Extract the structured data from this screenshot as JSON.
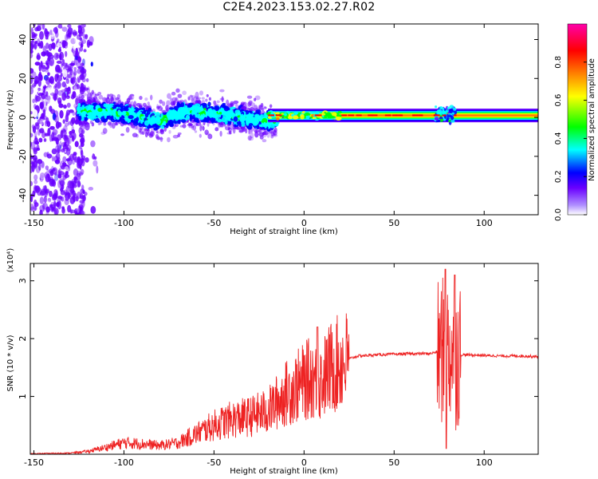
{
  "page": {
    "title": "C2E4.2023.153.02.27.R02"
  },
  "chart_data": [
    {
      "type": "heatmap",
      "xlabel": "Height of straight line (km)",
      "ylabel": "Frequency (Hz)",
      "xlim": [
        -152,
        130
      ],
      "ylim": [
        -50,
        48
      ],
      "xticks": [
        -150,
        -100,
        -50,
        0,
        50,
        100
      ],
      "yticks": [
        -40,
        -20,
        0,
        20,
        40
      ],
      "colorbar": {
        "label": "Normalized spectral amplitude",
        "range": [
          0,
          1
        ],
        "ticks": [
          "0.0",
          "0.2",
          "0.4",
          "0.6",
          "0.8"
        ]
      },
      "colorscale": [
        "#ffffff",
        "#6a00ff",
        "#0000ff",
        "#00ffff",
        "#00ff00",
        "#ffff00",
        "#ff8000",
        "#ff0000",
        "#ff00aa"
      ],
      "ridge": {
        "description_units": "frequency centre (Hz) vs height (km)",
        "x": [
          -125,
          -110,
          -100,
          -90,
          -80,
          -70,
          -60,
          -50,
          -40,
          -30,
          -20,
          -10,
          0,
          10,
          20,
          50,
          75,
          80,
          130
        ],
        "y": [
          3,
          3,
          2,
          0,
          -2,
          2,
          3,
          2,
          1,
          -1,
          -2,
          0,
          1,
          1,
          1,
          1,
          1,
          1,
          1
        ]
      }
    },
    {
      "type": "line",
      "xlabel": "Height of straight line (km)",
      "ylabel": "SNR (10 * v/v)",
      "y_multiplier": "(x10⁴)",
      "xlim": [
        -152,
        130
      ],
      "ylim": [
        0,
        3.3
      ],
      "xticks": [
        -150,
        -100,
        -50,
        0,
        50,
        100
      ],
      "yticks": [
        1,
        2,
        3
      ],
      "color": "#ee2222",
      "series": [
        {
          "x": [
            -152,
            -130,
            -120,
            -110,
            -100,
            -90,
            -80,
            -70,
            -60,
            -50,
            -40,
            -30,
            -20,
            -15,
            -10,
            -5,
            0,
            5,
            8,
            10,
            15,
            20,
            25,
            30,
            40,
            50,
            60,
            70,
            75,
            78,
            80,
            82,
            84,
            86,
            90,
            100,
            110,
            120,
            130
          ],
          "y": [
            0.01,
            0.02,
            0.05,
            0.12,
            0.2,
            0.18,
            0.15,
            0.2,
            0.35,
            0.5,
            0.6,
            0.65,
            0.75,
            0.9,
            1.05,
            1.15,
            1.25,
            1.35,
            1.2,
            1.3,
            1.5,
            1.58,
            1.65,
            1.7,
            1.72,
            1.73,
            1.74,
            1.74,
            1.78,
            1.8,
            1.75,
            1.8,
            1.7,
            1.72,
            1.72,
            1.71,
            1.7,
            1.7,
            1.69
          ]
        }
      ]
    }
  ]
}
